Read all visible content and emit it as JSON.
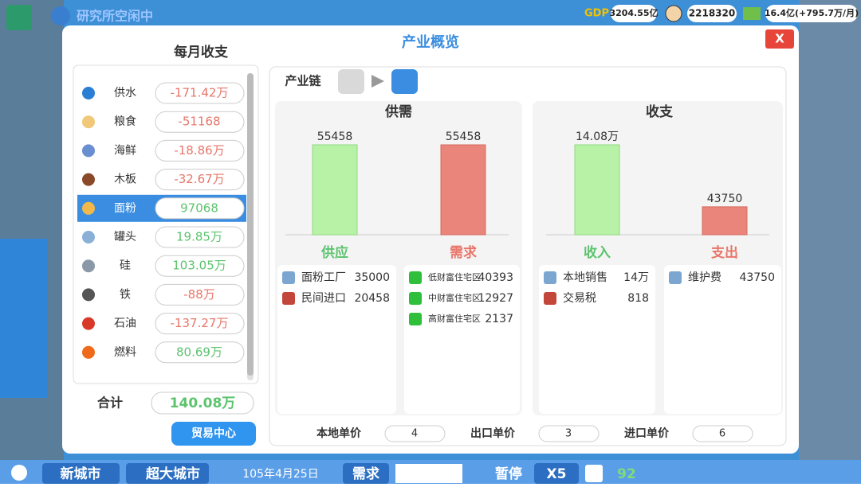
{
  "top_bar": {
    "status": "研究所空闲中",
    "gdp_label": "GDP",
    "gdp": "3204.55亿",
    "population": "2218320",
    "money": "16.4亿(+795.7万/月)"
  },
  "panel": {
    "title": "产业概览",
    "close": "X"
  },
  "monthly": {
    "title": "每月收支",
    "rows": [
      {
        "name": "供水",
        "value": "-171.42万"
      },
      {
        "name": "粮食",
        "value": "-51168"
      },
      {
        "name": "海鲜",
        "value": "-18.86万"
      },
      {
        "name": "木板",
        "value": "-32.67万"
      },
      {
        "name": "面粉",
        "value": "97068"
      },
      {
        "name": "罐头",
        "value": "19.85万"
      },
      {
        "name": "硅",
        "value": "103.05万"
      },
      {
        "name": "铁",
        "value": "-88万"
      },
      {
        "name": "石油",
        "value": "-137.27万"
      },
      {
        "name": "燃料",
        "value": "80.69万"
      }
    ],
    "total_label": "合计",
    "total": "140.08万",
    "button": "贸易中心"
  },
  "chain": {
    "label": "产业链"
  },
  "supply_demand": {
    "title": "供需",
    "categories": [
      "供应",
      "需求"
    ],
    "values": [
      55458,
      55458
    ],
    "supply": [
      {
        "name": "面粉工厂",
        "value": 35000
      },
      {
        "name": "民间进口",
        "value": 20458
      }
    ],
    "demand": [
      {
        "name": "低财富住宅区",
        "value": 40393
      },
      {
        "name": "中财富住宅区",
        "value": 12927
      },
      {
        "name": "高财富住宅区",
        "value": 2137
      }
    ]
  },
  "finance": {
    "title": "收支",
    "categories": [
      "收入",
      "支出"
    ],
    "values": [
      140800,
      43750
    ],
    "value_labels": [
      "14.08万",
      "43750"
    ],
    "income": [
      {
        "name": "本地销售",
        "value": "14万"
      },
      {
        "name": "交易税",
        "value": 818
      }
    ],
    "expense": [
      {
        "name": "维护费",
        "value": 43750
      }
    ]
  },
  "prices": [
    {
      "label": "本地单价",
      "value": 4
    },
    {
      "label": "出口单价",
      "value": 3
    },
    {
      "label": "进口单价",
      "value": 6
    }
  ],
  "bottom_bar": {
    "city": "新城市",
    "size": "超大城市",
    "date": "105年4月25日",
    "demand": "需求",
    "pause": "暂停",
    "speed": "X5",
    "rating": 92
  }
}
